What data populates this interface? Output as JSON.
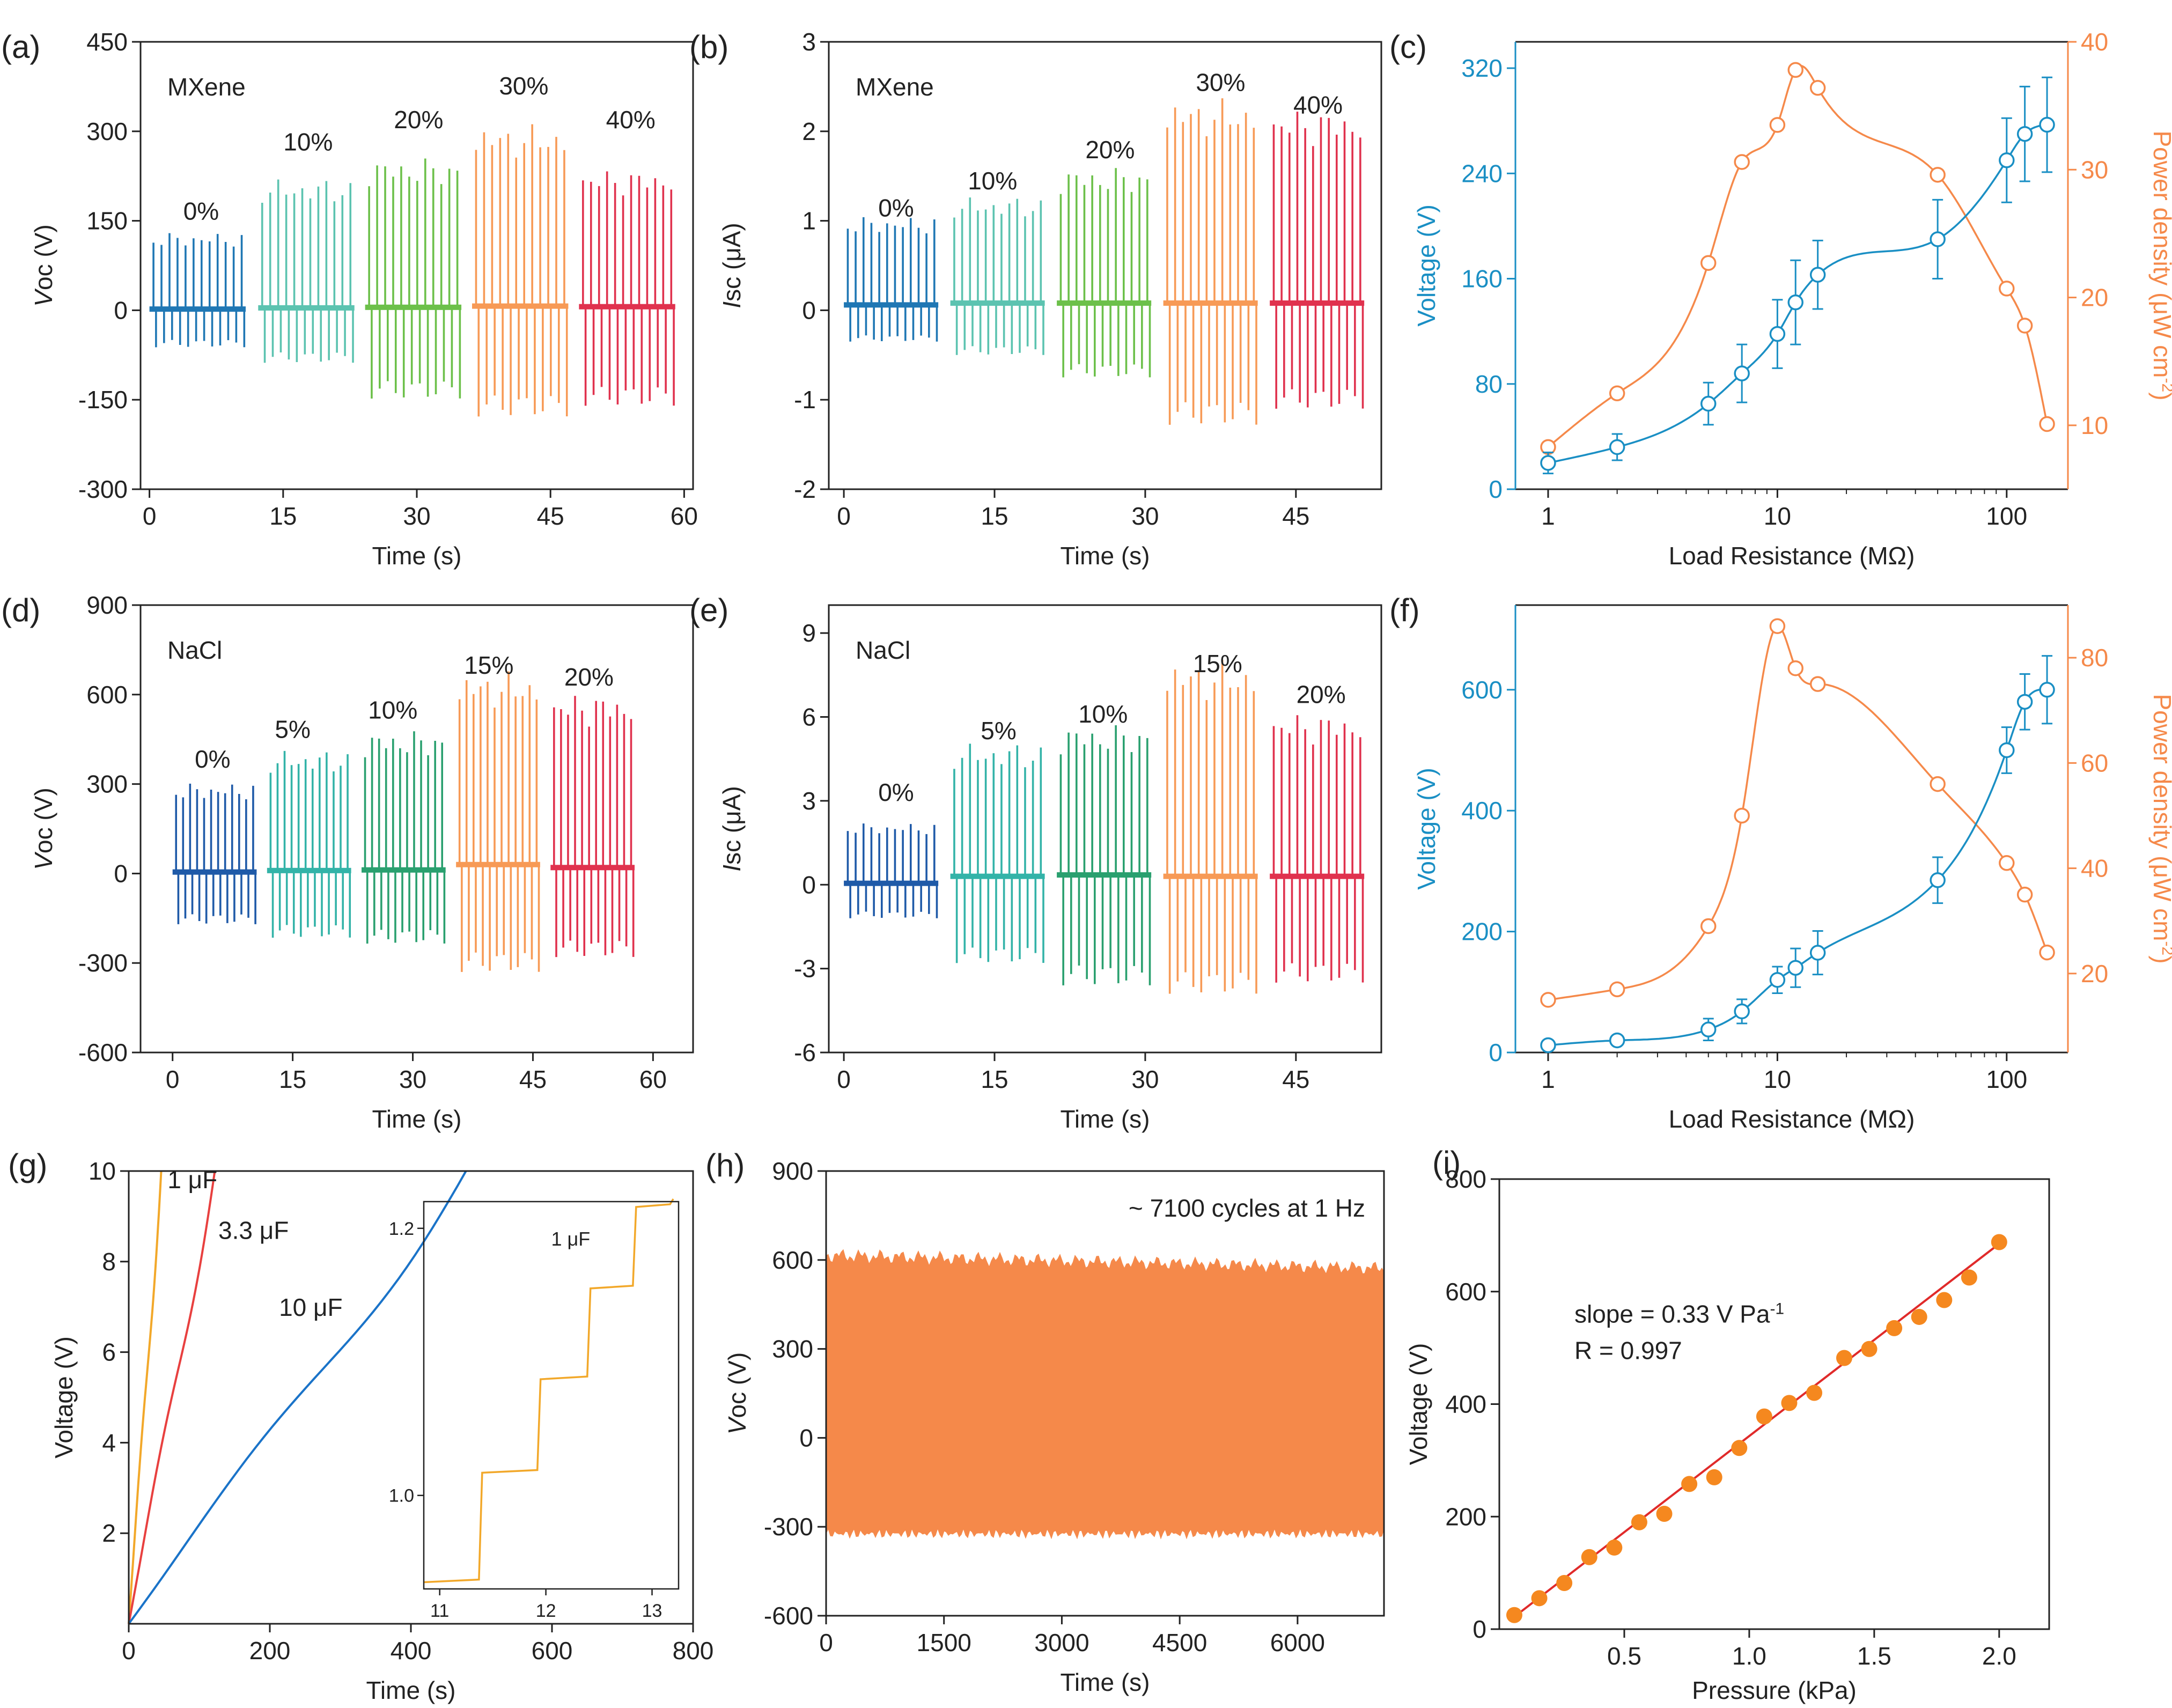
{
  "colors": {
    "axis": "#222222",
    "blue": "#1a8fc4",
    "orange": "#f5894a",
    "fit_red": "#e02a2a",
    "dot_orange": "#f5881f",
    "cap_1uF": "#f2a82a",
    "cap_3_3uF": "#e8403f",
    "cap_10uF": "#1a73c8",
    "groups_mxene": [
      "#1f77b4",
      "#5cc3b0",
      "#6cc04a",
      "#f79a56",
      "#e0324e"
    ],
    "groups_nacl": [
      "#1f5aa8",
      "#33b3a8",
      "#2aa06f",
      "#f79a56",
      "#e0324e"
    ]
  },
  "chart_data": [
    {
      "id": "a",
      "panel_label": "(a)",
      "type": "line",
      "title": "",
      "annotation": "MXene",
      "xlabel": "Time (s)",
      "ylabel_italic": "V",
      "ylabel_rest": "oc (V)",
      "xlim": [
        -1,
        61
      ],
      "ylim": [
        -300,
        450
      ],
      "xticks": [
        0,
        15,
        30,
        45,
        60
      ],
      "yticks": [
        -300,
        -150,
        0,
        150,
        300,
        450
      ],
      "series": [
        {
          "name": "0%",
          "x_range": [
            0,
            10.8
          ],
          "pulses": 12,
          "pos": 118,
          "neg": -62,
          "offset": 2
        },
        {
          "name": "10%",
          "x_range": [
            12.2,
            23
          ],
          "pulses": 12,
          "pos": 200,
          "neg": -88,
          "offset": 4
        },
        {
          "name": "20%",
          "x_range": [
            24.2,
            35
          ],
          "pulses": 12,
          "pos": 232,
          "neg": -148,
          "offset": 5
        },
        {
          "name": "30%",
          "x_range": [
            36.2,
            47
          ],
          "pulses": 12,
          "pos": 283,
          "neg": -178,
          "offset": 7
        },
        {
          "name": "40%",
          "x_range": [
            48.2,
            59
          ],
          "pulses": 12,
          "pos": 215,
          "neg": -160,
          "offset": 6
        }
      ],
      "group_labels": [
        {
          "text": "0%",
          "x": 5.8,
          "y": 152
        },
        {
          "text": "10%",
          "x": 17.8,
          "y": 268
        },
        {
          "text": "20%",
          "x": 30.2,
          "y": 305
        },
        {
          "text": "30%",
          "x": 42,
          "y": 362
        },
        {
          "text": "40%",
          "x": 54,
          "y": 305
        }
      ]
    },
    {
      "id": "b",
      "panel_label": "(b)",
      "type": "line",
      "title": "",
      "annotation": "MXene",
      "xlabel": "Time (s)",
      "ylabel_italic": "I",
      "ylabel_rest": "sc (μA)",
      "xlim": [
        -1.5,
        53.5
      ],
      "ylim": [
        -2,
        3
      ],
      "xticks": [
        0,
        15,
        30,
        45
      ],
      "yticks": [
        -2,
        -1,
        0,
        1,
        2,
        3
      ],
      "series": [
        {
          "name": "0%",
          "x_range": [
            0,
            9.4
          ],
          "pulses": 12,
          "pos": 0.95,
          "neg": -0.35,
          "offset": 0.06
        },
        {
          "name": "10%",
          "x_range": [
            10.6,
            20
          ],
          "pulses": 12,
          "pos": 1.15,
          "neg": -0.5,
          "offset": 0.08
        },
        {
          "name": "20%",
          "x_range": [
            21.2,
            30.6
          ],
          "pulses": 12,
          "pos": 1.45,
          "neg": -0.75,
          "offset": 0.08
        },
        {
          "name": "30%",
          "x_range": [
            31.8,
            41.2
          ],
          "pulses": 12,
          "pos": 2.15,
          "neg": -1.28,
          "offset": 0.08
        },
        {
          "name": "40%",
          "x_range": [
            42.4,
            51.8
          ],
          "pulses": 12,
          "pos": 2.05,
          "neg": -1.1,
          "offset": 0.08
        }
      ],
      "group_labels": [
        {
          "text": "0%",
          "x": 5.2,
          "y": 1.05
        },
        {
          "text": "10%",
          "x": 14.8,
          "y": 1.35
        },
        {
          "text": "20%",
          "x": 26.5,
          "y": 1.7
        },
        {
          "text": "30%",
          "x": 37.5,
          "y": 2.45
        },
        {
          "text": "40%",
          "x": 47.2,
          "y": 2.2
        }
      ]
    },
    {
      "id": "c",
      "panel_label": "(c)",
      "type": "scatter",
      "title": "",
      "xlabel": "Load Resistance (MΩ)",
      "ylabel_left": "Voltage (V)",
      "ylabel_right_base": "Power density (μW cm",
      "ylabel_right_sup": "-2",
      "ylabel_right_end": ")",
      "xlog": true,
      "xlim": [
        0.72,
        185
      ],
      "xticks": [
        1,
        10,
        100
      ],
      "xtick_labels": [
        "1",
        "10",
        "100"
      ],
      "ylim_left": [
        0,
        340
      ],
      "yticks_left": [
        0,
        80,
        160,
        240,
        320
      ],
      "ylim_right": [
        5,
        40
      ],
      "yticks_right": [
        10,
        20,
        30,
        40
      ],
      "voltage": {
        "x": [
          1,
          2,
          5,
          7,
          10,
          12,
          15,
          50,
          100,
          120,
          150
        ],
        "y": [
          20,
          32,
          65,
          88,
          118,
          142,
          163,
          190,
          250,
          270,
          277
        ],
        "err": [
          8,
          10,
          16,
          22,
          26,
          32,
          26,
          30,
          32,
          36,
          36
        ]
      },
      "power": {
        "x": [
          1,
          2,
          5,
          7,
          10,
          12,
          15,
          50,
          100,
          120,
          150
        ],
        "y": [
          8.3,
          12.5,
          22.7,
          30.6,
          33.5,
          37.8,
          36.4,
          29.6,
          20.7,
          17.8,
          10.1
        ]
      }
    },
    {
      "id": "d",
      "panel_label": "(d)",
      "type": "line",
      "title": "",
      "annotation": "NaCl",
      "xlabel": "Time (s)",
      "ylabel_italic": "V",
      "ylabel_rest": "oc (V)",
      "xlim": [
        -4,
        65
      ],
      "ylim": [
        -600,
        900
      ],
      "xticks": [
        0,
        15,
        30,
        45,
        60
      ],
      "yticks": [
        -600,
        -300,
        0,
        300,
        600,
        900
      ],
      "series": [
        {
          "name": "0%",
          "x_range": [
            0,
            10.5
          ],
          "pulses": 12,
          "pos": 275,
          "neg": -170,
          "offset": 5
        },
        {
          "name": "5%",
          "x_range": [
            11.8,
            22.3
          ],
          "pulses": 12,
          "pos": 375,
          "neg": -215,
          "offset": 10
        },
        {
          "name": "10%",
          "x_range": [
            23.6,
            34.1
          ],
          "pulses": 12,
          "pos": 435,
          "neg": -235,
          "offset": 12
        },
        {
          "name": "15%",
          "x_range": [
            35.4,
            45.9
          ],
          "pulses": 12,
          "pos": 615,
          "neg": -330,
          "offset": 30
        },
        {
          "name": "20%",
          "x_range": [
            47.2,
            57.7
          ],
          "pulses": 12,
          "pos": 550,
          "neg": -280,
          "offset": 20
        }
      ],
      "group_labels": [
        {
          "text": "0%",
          "x": 5,
          "y": 355
        },
        {
          "text": "5%",
          "x": 15,
          "y": 455
        },
        {
          "text": "10%",
          "x": 27.5,
          "y": 520
        },
        {
          "text": "15%",
          "x": 39.5,
          "y": 670
        },
        {
          "text": "20%",
          "x": 52,
          "y": 630
        }
      ]
    },
    {
      "id": "e",
      "panel_label": "(e)",
      "type": "line",
      "title": "",
      "annotation": "NaCl",
      "xlabel": "Time (s)",
      "ylabel_italic": "I",
      "ylabel_rest": "sc (μA)",
      "xlim": [
        -1.5,
        53.5
      ],
      "ylim": [
        -6,
        10
      ],
      "xticks": [
        0,
        15,
        30,
        45
      ],
      "yticks": [
        -6,
        -3,
        0,
        3,
        6,
        9
      ],
      "series": [
        {
          "name": "0%",
          "x_range": [
            0,
            9.4
          ],
          "pulses": 12,
          "pos": 2,
          "neg": -1.2,
          "offset": 0.05
        },
        {
          "name": "5%",
          "x_range": [
            10.6,
            20
          ],
          "pulses": 12,
          "pos": 4.6,
          "neg": -2.8,
          "offset": 0.3
        },
        {
          "name": "10%",
          "x_range": [
            21.2,
            30.6
          ],
          "pulses": 12,
          "pos": 5.2,
          "neg": -3.6,
          "offset": 0.35
        },
        {
          "name": "15%",
          "x_range": [
            31.8,
            41.2
          ],
          "pulses": 12,
          "pos": 7.3,
          "neg": -3.9,
          "offset": 0.3
        },
        {
          "name": "20%",
          "x_range": [
            42.4,
            51.8
          ],
          "pulses": 12,
          "pos": 5.6,
          "neg": -3.5,
          "offset": 0.3
        }
      ],
      "group_labels": [
        {
          "text": "0%",
          "x": 5.2,
          "y": 3
        },
        {
          "text": "5%",
          "x": 15.4,
          "y": 5.2
        },
        {
          "text": "10%",
          "x": 25.8,
          "y": 5.8
        },
        {
          "text": "15%",
          "x": 37.2,
          "y": 7.6
        },
        {
          "text": "20%",
          "x": 47.5,
          "y": 6.5
        }
      ]
    },
    {
      "id": "f",
      "panel_label": "(f)",
      "type": "scatter",
      "title": "",
      "xlabel": "Load Resistance (MΩ)",
      "ylabel_left": "Voltage (V)",
      "ylabel_right_base": "Power density (μW cm",
      "ylabel_right_sup": "-2",
      "ylabel_right_end": ")",
      "xlog": true,
      "xlim": [
        0.72,
        185
      ],
      "xticks": [
        1,
        10,
        100
      ],
      "xtick_labels": [
        "1",
        "10",
        "100"
      ],
      "ylim_left": [
        0,
        740
      ],
      "yticks_left": [
        0,
        200,
        400,
        600
      ],
      "ylim_right": [
        5,
        90
      ],
      "yticks_right": [
        20,
        40,
        60,
        80
      ],
      "voltage": {
        "x": [
          1,
          2,
          5,
          7,
          10,
          12,
          15,
          50,
          100,
          120,
          150
        ],
        "y": [
          12,
          20,
          38,
          68,
          120,
          140,
          165,
          285,
          500,
          580,
          600
        ],
        "err": [
          8,
          8,
          18,
          20,
          22,
          32,
          36,
          38,
          38,
          46,
          56
        ]
      },
      "power": {
        "x": [
          1,
          2,
          5,
          7,
          10,
          12,
          15,
          50,
          100,
          120,
          150
        ],
        "y": [
          15,
          17,
          29,
          50,
          86,
          78,
          75,
          56,
          41,
          35,
          24
        ]
      }
    },
    {
      "id": "g",
      "panel_label": "(g)",
      "type": "line",
      "title": "",
      "xlabel": "Time (s)",
      "ylabel": "Voltage (V)",
      "xlim": [
        0,
        800
      ],
      "ylim": [
        0,
        10
      ],
      "xticks": [
        0,
        200,
        400,
        600,
        800
      ],
      "yticks": [
        2,
        4,
        6,
        8,
        10
      ],
      "series": [
        {
          "name": "1 μF",
          "x": [
            0,
            46
          ],
          "y": [
            0,
            10
          ]
        },
        {
          "name": "3.3 μF",
          "x": [
            0,
            122
          ],
          "y": [
            0,
            10
          ]
        },
        {
          "name": "10 μF",
          "x": [
            0,
            478
          ],
          "y": [
            0,
            10
          ]
        }
      ],
      "series_labels": [
        {
          "text": "1 μF",
          "x": 55,
          "y": 9.62
        },
        {
          "text": "3.3 μF",
          "x": 127,
          "y": 8.5
        },
        {
          "text": "10 μF",
          "x": 213,
          "y": 6.8
        }
      ],
      "inset": {
        "label": "1 μF",
        "xlim": [
          10.85,
          13.25
        ],
        "ylim": [
          0.93,
          1.22
        ],
        "xticks": [
          11,
          12,
          13
        ],
        "yticks": [
          1.0,
          1.2
        ],
        "ytick_labels": [
          "1.0",
          "1.2"
        ],
        "steps": [
          [
            10.85,
            0.935
          ],
          [
            11.4,
            1.017
          ],
          [
            11.95,
            1.087
          ],
          [
            12.42,
            1.155
          ],
          [
            12.85,
            1.216
          ],
          [
            13.2,
            1.222
          ]
        ]
      }
    },
    {
      "id": "h",
      "panel_label": "(h)",
      "type": "area",
      "title": "",
      "annotation": "~ 7100 cycles at 1 Hz",
      "xlabel": "Time (s)",
      "ylabel_italic": "V",
      "ylabel_rest": "oc (V)",
      "xlim": [
        0,
        7100
      ],
      "ylim": [
        -600,
        900
      ],
      "xticks": [
        0,
        1500,
        3000,
        4500,
        6000
      ],
      "yticks": [
        -600,
        -300,
        0,
        300,
        600,
        900
      ],
      "envelope": {
        "pos": 640,
        "neg": -340
      }
    },
    {
      "id": "i",
      "panel_label": "(i)",
      "type": "scatter",
      "title": "",
      "xlabel": "Pressure (kPa)",
      "ylabel": "Voltage (V)",
      "annotation_slope_base": "slope = 0.33 V Pa",
      "annotation_slope_sup": "-1",
      "annotation_r": "R = 0.997",
      "xlim": [
        0,
        2.2
      ],
      "ylim": [
        0,
        800
      ],
      "xticks": [
        0.5,
        1.0,
        1.5,
        2.0
      ],
      "xtick_labels": [
        "0.5",
        "1.0",
        "1.5",
        "2.0"
      ],
      "yticks": [
        0,
        200,
        400,
        600,
        800
      ],
      "x": [
        0.06,
        0.16,
        0.26,
        0.36,
        0.46,
        0.56,
        0.66,
        0.76,
        0.86,
        0.96,
        1.06,
        1.16,
        1.26,
        1.38,
        1.48,
        1.58,
        1.68,
        1.78,
        1.88,
        2.0
      ],
      "y": [
        25,
        55,
        82,
        128,
        145,
        190,
        205,
        258,
        270,
        322,
        378,
        402,
        420,
        482,
        498,
        535,
        555,
        585,
        625,
        688
      ],
      "fit": {
        "x": [
          0.06,
          2.0
        ],
        "y": [
          22,
          685
        ]
      }
    }
  ]
}
